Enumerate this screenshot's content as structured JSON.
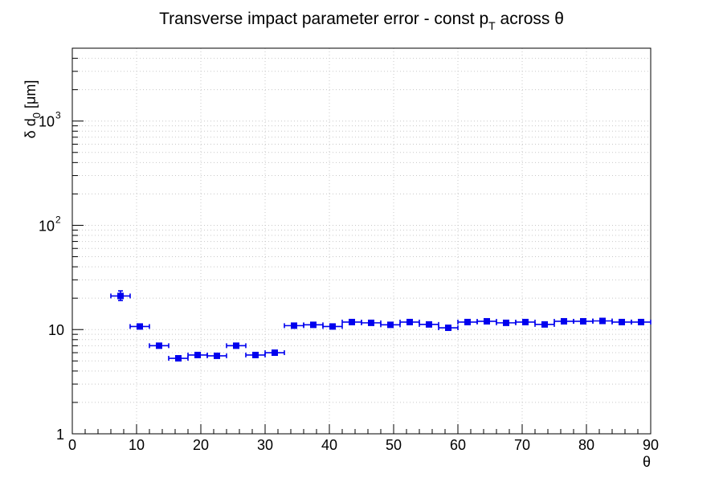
{
  "chart_data": {
    "type": "scatter",
    "title": "Transverse impact parameter error - const p_T across θ",
    "title_parts": {
      "main": "Transverse impact parameter error - const p",
      "sub": "T",
      "rest": " across θ"
    },
    "xlabel": "θ",
    "ylabel_parts": {
      "main": "δ d",
      "sub": "0",
      "rest": " [μm]"
    },
    "xlim": [
      0,
      90
    ],
    "ylim": [
      1,
      5000
    ],
    "yscale": "log",
    "grid": true,
    "x_ticks": [
      0,
      10,
      20,
      30,
      40,
      50,
      60,
      70,
      80,
      90
    ],
    "y_tick_labels": [
      {
        "value": 1,
        "base": "1",
        "exp": ""
      },
      {
        "value": 10,
        "base": "10",
        "exp": ""
      },
      {
        "value": 100,
        "base": "10",
        "exp": "2"
      },
      {
        "value": 1000,
        "base": "10",
        "exp": "3"
      }
    ],
    "series": [
      {
        "color": "#0000ee",
        "marker": "square",
        "x_error": 1.5,
        "points": [
          {
            "x": 7.5,
            "y": 21,
            "ylo": 19,
            "yhi": 23.5
          },
          {
            "x": 10.5,
            "y": 10.7,
            "ylo": 10.3,
            "yhi": 11.1
          },
          {
            "x": 13.5,
            "y": 7.0,
            "ylo": 6.7,
            "yhi": 7.3
          },
          {
            "x": 16.5,
            "y": 5.3,
            "ylo": 5.1,
            "yhi": 5.5
          },
          {
            "x": 19.5,
            "y": 5.7,
            "ylo": 5.5,
            "yhi": 5.9
          },
          {
            "x": 22.5,
            "y": 5.6,
            "ylo": 5.4,
            "yhi": 5.8
          },
          {
            "x": 25.5,
            "y": 7.0,
            "ylo": 6.7,
            "yhi": 7.3
          },
          {
            "x": 28.5,
            "y": 5.7,
            "ylo": 5.5,
            "yhi": 5.9
          },
          {
            "x": 31.5,
            "y": 6.0,
            "ylo": 5.8,
            "yhi": 6.2
          },
          {
            "x": 34.5,
            "y": 10.9,
            "ylo": 10.5,
            "yhi": 11.3
          },
          {
            "x": 37.5,
            "y": 11.1,
            "ylo": 10.7,
            "yhi": 11.5
          },
          {
            "x": 40.5,
            "y": 10.7,
            "ylo": 10.3,
            "yhi": 11.1
          },
          {
            "x": 43.5,
            "y": 11.8,
            "ylo": 11.4,
            "yhi": 12.2
          },
          {
            "x": 46.5,
            "y": 11.6,
            "ylo": 11.2,
            "yhi": 12.0
          },
          {
            "x": 49.5,
            "y": 11.1,
            "ylo": 10.7,
            "yhi": 11.5
          },
          {
            "x": 52.5,
            "y": 11.8,
            "ylo": 11.4,
            "yhi": 12.2
          },
          {
            "x": 55.5,
            "y": 11.2,
            "ylo": 10.8,
            "yhi": 11.6
          },
          {
            "x": 58.5,
            "y": 10.4,
            "ylo": 10.0,
            "yhi": 10.8
          },
          {
            "x": 61.5,
            "y": 11.8,
            "ylo": 11.4,
            "yhi": 12.2
          },
          {
            "x": 64.5,
            "y": 12.0,
            "ylo": 11.6,
            "yhi": 12.4
          },
          {
            "x": 67.5,
            "y": 11.6,
            "ylo": 11.2,
            "yhi": 12.0
          },
          {
            "x": 70.5,
            "y": 11.8,
            "ylo": 11.4,
            "yhi": 12.2
          },
          {
            "x": 73.5,
            "y": 11.2,
            "ylo": 10.8,
            "yhi": 11.6
          },
          {
            "x": 76.5,
            "y": 12.0,
            "ylo": 11.6,
            "yhi": 12.4
          },
          {
            "x": 79.5,
            "y": 12.0,
            "ylo": 11.6,
            "yhi": 12.4
          },
          {
            "x": 82.5,
            "y": 12.1,
            "ylo": 11.7,
            "yhi": 12.5
          },
          {
            "x": 85.5,
            "y": 11.8,
            "ylo": 11.4,
            "yhi": 12.2
          },
          {
            "x": 88.5,
            "y": 11.8,
            "ylo": 11.4,
            "yhi": 12.2
          }
        ]
      }
    ]
  }
}
